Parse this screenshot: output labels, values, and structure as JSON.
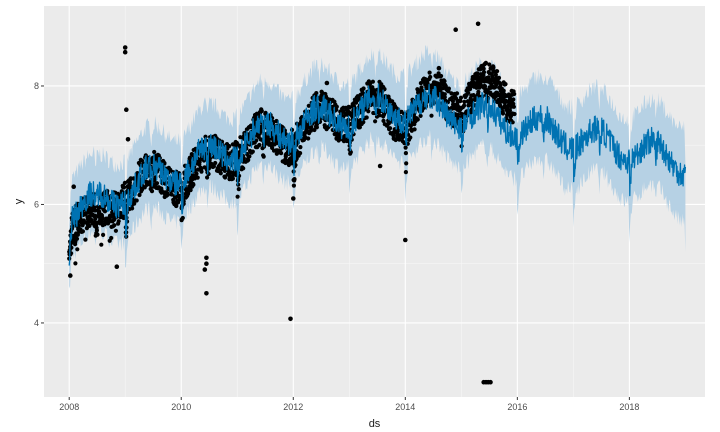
{
  "chart_data": {
    "type": "scatter",
    "title": "",
    "xlabel": "ds",
    "ylabel": "y",
    "xlim": [
      2007.55,
      2019.35
    ],
    "ylim": [
      2.75,
      9.35
    ],
    "x_ticks": [
      {
        "value": 2008,
        "label": "2008"
      },
      {
        "value": 2010,
        "label": "2010"
      },
      {
        "value": 2012,
        "label": "2012"
      },
      {
        "value": 2014,
        "label": "2014"
      },
      {
        "value": 2016,
        "label": "2016"
      },
      {
        "value": 2018,
        "label": "2018"
      }
    ],
    "y_ticks": [
      {
        "value": 4,
        "label": "4"
      },
      {
        "value": 6,
        "label": "6"
      },
      {
        "value": 8,
        "label": "8"
      }
    ],
    "grid": true,
    "colors": {
      "panel": "#ebebeb",
      "grid_major": "#ffffff",
      "forecast_line": "#0072B2",
      "uncertainty_band": "#b6d1e4",
      "observed_points": "#000000"
    },
    "forecast": {
      "x": [
        2008.0,
        2008.5,
        2009.0,
        2009.5,
        2010.0,
        2010.5,
        2011.0,
        2011.5,
        2012.0,
        2012.5,
        2013.0,
        2013.5,
        2014.0,
        2014.5,
        2015.0,
        2015.5,
        2016.0,
        2016.5,
        2017.0,
        2017.5,
        2018.0,
        2018.5,
        2019.0
      ],
      "yhat": [
        5.9,
        6.0,
        6.25,
        6.45,
        6.6,
        6.8,
        7.0,
        7.2,
        7.3,
        7.45,
        7.55,
        7.62,
        7.65,
        7.62,
        7.55,
        7.45,
        7.35,
        7.25,
        7.15,
        7.05,
        6.95,
        6.85,
        6.72
      ],
      "yhat_lower": [
        5.3,
        5.35,
        5.6,
        5.75,
        5.95,
        6.1,
        6.3,
        6.5,
        6.6,
        6.75,
        6.85,
        6.9,
        6.95,
        6.9,
        6.85,
        6.75,
        6.65,
        6.55,
        6.45,
        6.35,
        6.25,
        6.1,
        5.9
      ],
      "yhat_upper": [
        6.6,
        6.65,
        6.95,
        7.15,
        7.3,
        7.5,
        7.7,
        7.9,
        8.0,
        8.15,
        8.25,
        8.33,
        8.4,
        8.35,
        8.25,
        8.15,
        8.05,
        7.95,
        7.85,
        7.75,
        7.65,
        7.55,
        7.5
      ]
    },
    "observed_trend": {
      "x": [
        2008.0,
        2008.5,
        2009.0,
        2009.5,
        2010.0,
        2010.5,
        2011.0,
        2011.5,
        2012.0,
        2012.5,
        2013.0,
        2013.5,
        2014.0,
        2014.5,
        2015.0,
        2015.5,
        2015.95
      ],
      "y": [
        5.8,
        5.7,
        6.3,
        6.4,
        6.5,
        6.7,
        7.0,
        7.1,
        7.2,
        7.4,
        7.6,
        7.6,
        7.5,
        7.8,
        7.8,
        7.9,
        7.85
      ]
    },
    "outliers": [
      {
        "x": 2008.02,
        "y": 4.8
      },
      {
        "x": 2008.08,
        "y": 6.3
      },
      {
        "x": 2008.85,
        "y": 4.95
      },
      {
        "x": 2009.0,
        "y": 8.65
      },
      {
        "x": 2009.0,
        "y": 8.57
      },
      {
        "x": 2009.02,
        "y": 7.6
      },
      {
        "x": 2009.05,
        "y": 7.1
      },
      {
        "x": 2010.45,
        "y": 5.1
      },
      {
        "x": 2010.45,
        "y": 5.0
      },
      {
        "x": 2010.42,
        "y": 4.9
      },
      {
        "x": 2010.45,
        "y": 4.5
      },
      {
        "x": 2012.0,
        "y": 6.1
      },
      {
        "x": 2011.95,
        "y": 4.07
      },
      {
        "x": 2014.0,
        "y": 5.4
      },
      {
        "x": 2014.9,
        "y": 8.95
      },
      {
        "x": 2015.3,
        "y": 9.05
      },
      {
        "x": 2015.4,
        "y": 3.0
      },
      {
        "x": 2015.44,
        "y": 3.0
      },
      {
        "x": 2015.48,
        "y": 3.0
      },
      {
        "x": 2015.52,
        "y": 3.0
      },
      {
        "x": 2013.55,
        "y": 6.65
      },
      {
        "x": 2012.6,
        "y": 8.05
      },
      {
        "x": 2014.6,
        "y": 8.3
      }
    ]
  }
}
